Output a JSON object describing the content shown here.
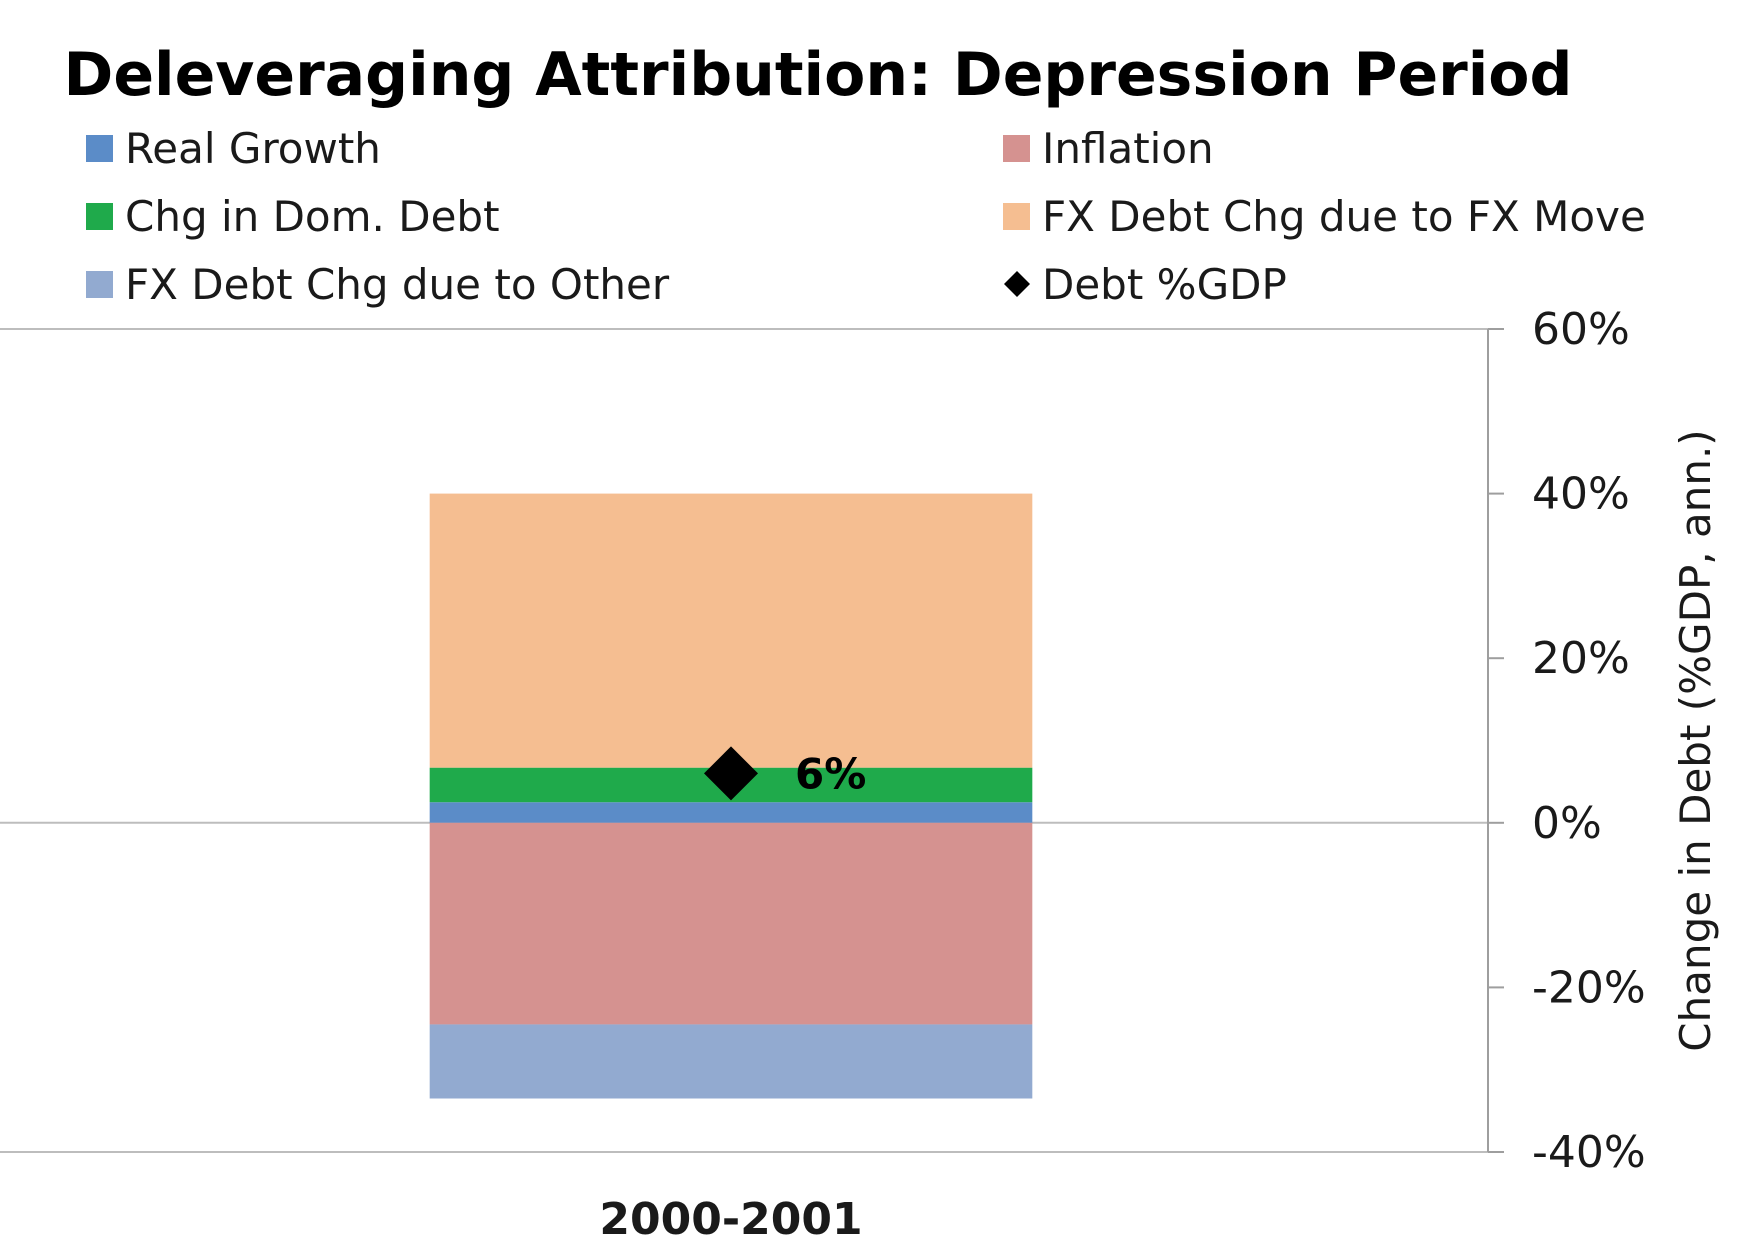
{
  "chart_data": {
    "type": "bar",
    "stacked": true,
    "title": "Deleveraging Attribution: Depression Period",
    "categories": [
      "2000-2001"
    ],
    "series": [
      {
        "name": "Real Growth",
        "values": [
          2.5
        ],
        "color": "#5b8cc8"
      },
      {
        "name": "Inflation",
        "values": [
          -24.5
        ],
        "color": "#d59290"
      },
      {
        "name": "Chg in Dom. Debt",
        "values": [
          4.2
        ],
        "color": "#1faa4b"
      },
      {
        "name": "FX Debt Chg due to FX Move",
        "values": [
          33.3
        ],
        "color": "#f5be91"
      },
      {
        "name": "FX Debt Chg due to Other",
        "values": [
          -9.0
        ],
        "color": "#92aad0"
      }
    ],
    "markers": [
      {
        "name": "Debt %GDP",
        "values": [
          6
        ],
        "label": "6%",
        "color": "#000000",
        "shape": "diamond"
      }
    ],
    "ylabel": "Change in Debt (%GDP, ann.)",
    "xlabel": "",
    "ylim": [
      -40,
      60
    ],
    "yticks": [
      60,
      40,
      20,
      0,
      -20,
      -40
    ],
    "ytick_labels": [
      "60%",
      "40%",
      "20%",
      "0%",
      "-20%",
      "-40%"
    ],
    "y_axis_side": "right",
    "legend_position": "top",
    "grid": false
  }
}
